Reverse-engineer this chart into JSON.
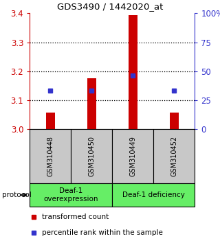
{
  "title": "GDS3490 / 1442020_at",
  "samples": [
    "GSM310448",
    "GSM310450",
    "GSM310449",
    "GSM310452"
  ],
  "bar_values": [
    3.055,
    3.175,
    3.395,
    3.055
  ],
  "bar_bottom": [
    3.0,
    3.0,
    3.0,
    3.0
  ],
  "percentile_values": [
    0.33,
    0.33,
    0.46,
    0.33
  ],
  "ylim": [
    3.0,
    3.4
  ],
  "yticks_left": [
    3.0,
    3.1,
    3.2,
    3.3,
    3.4
  ],
  "yticks_right": [
    0,
    25,
    50,
    75,
    100
  ],
  "bar_color": "#cc0000",
  "percentile_color": "#3333cc",
  "groups": [
    {
      "label": "Deaf-1\noverexpression",
      "color": "#66ee66"
    },
    {
      "label": "Deaf-1 deficiency",
      "color": "#66ee66"
    }
  ],
  "protocol_label": "protocol",
  "legend_items": [
    {
      "color": "#cc0000",
      "label": "transformed count"
    },
    {
      "color": "#3333cc",
      "label": "percentile rank within the sample"
    }
  ],
  "left_axis_color": "#cc0000",
  "right_axis_color": "#3333cc",
  "sample_box_color": "#c8c8c8",
  "bar_width": 0.22
}
